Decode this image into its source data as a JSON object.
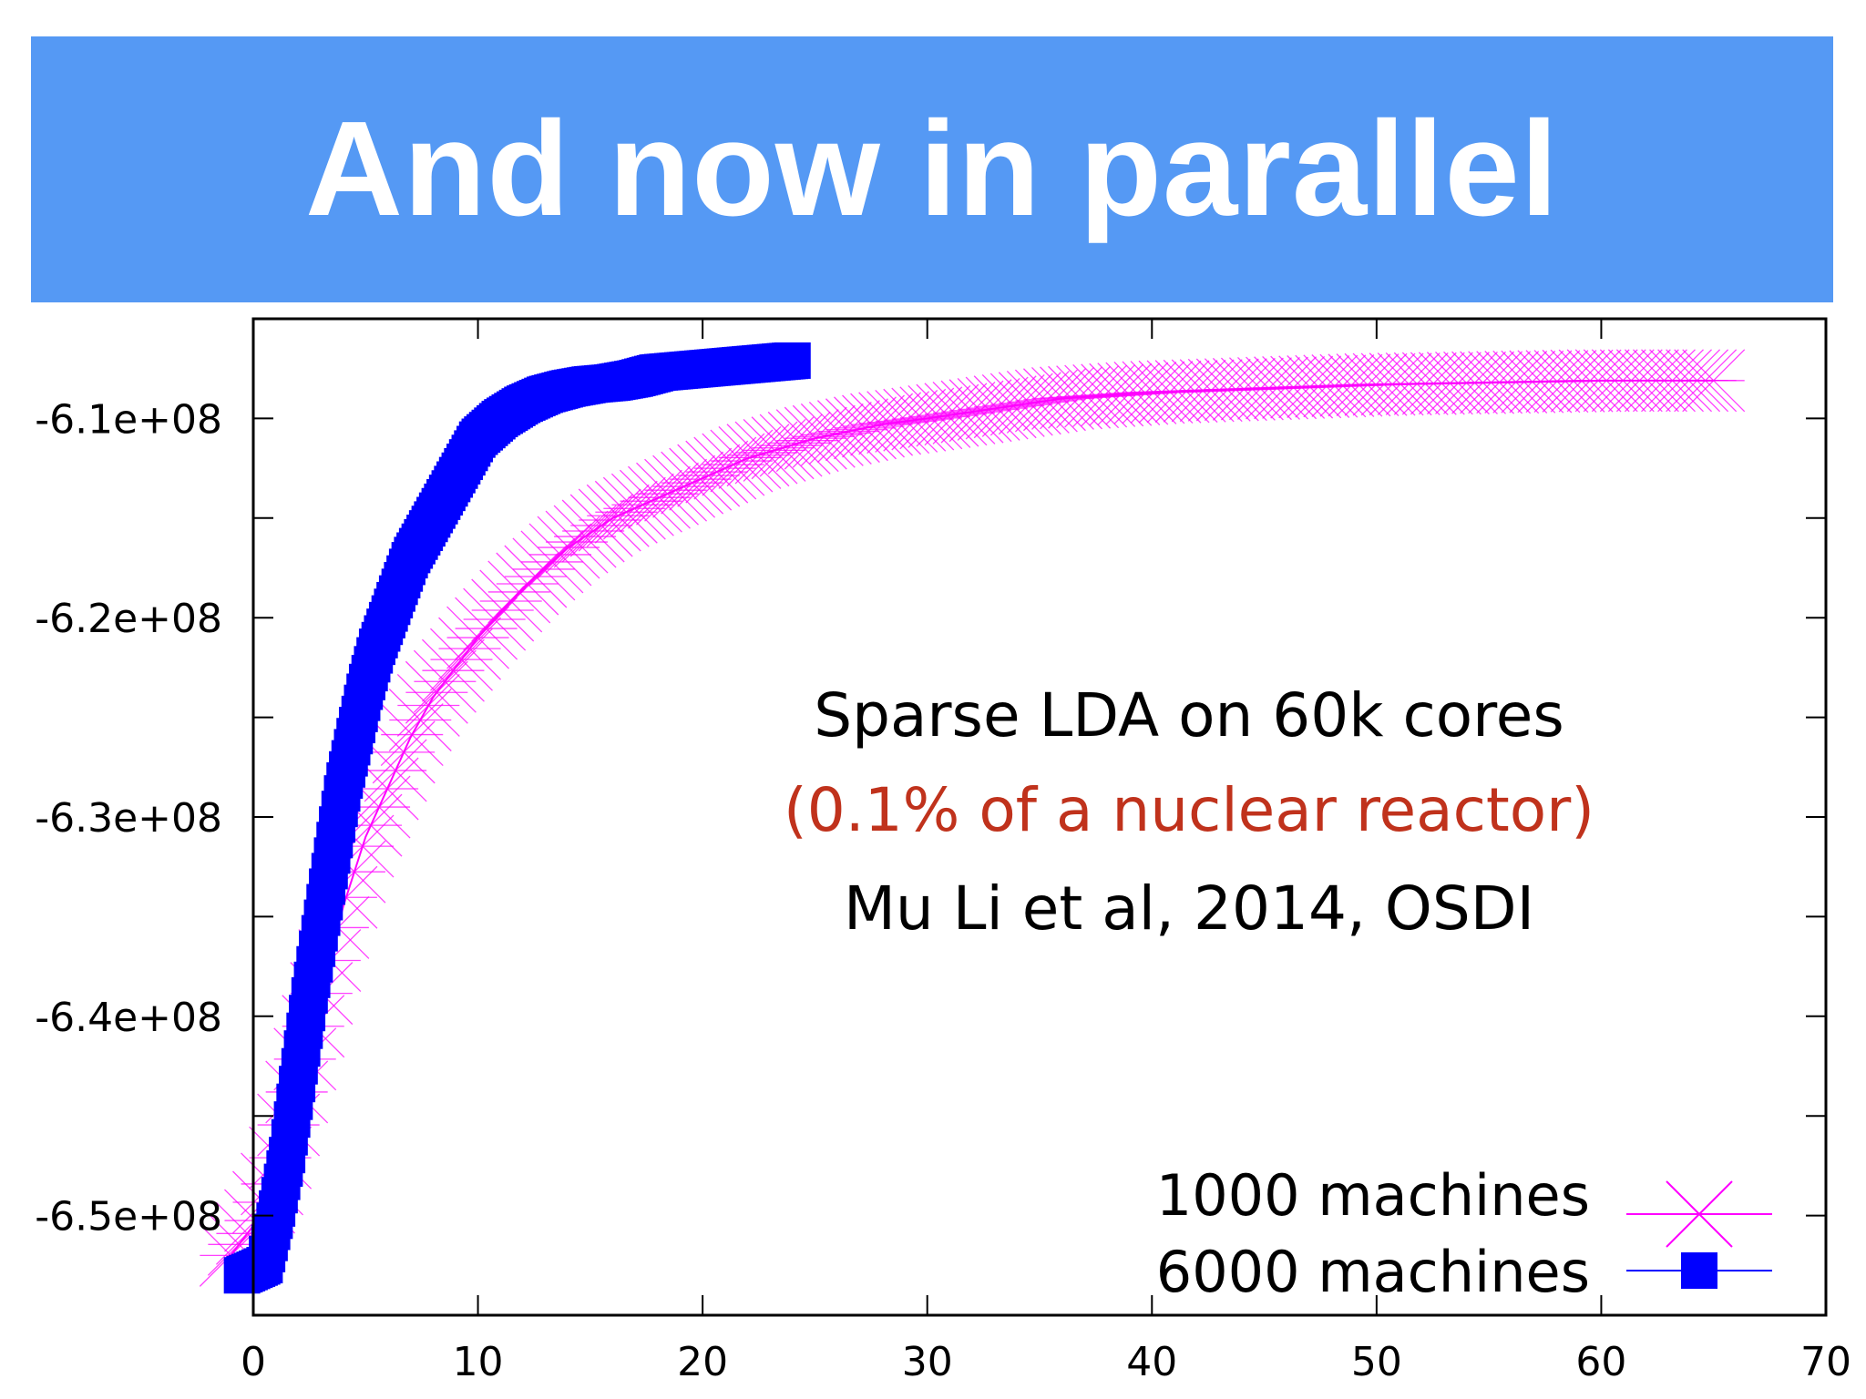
{
  "slide": {
    "title": "And now in parallel",
    "title_bar_color": "#5599f4"
  },
  "annotation": {
    "line1": "Sparse LDA on 60k cores",
    "line2": "(0.1% of a nuclear reactor)",
    "line3": "Mu Li et al, 2014, OSDI",
    "line1_color": "#000000",
    "line2_color": "#c0321c",
    "line3_color": "#000000"
  },
  "chart_data": {
    "type": "scatter",
    "title": "",
    "xlabel": "",
    "ylabel": "",
    "xlim": [
      0,
      70
    ],
    "ylim": [
      -655000000.0,
      -605000000.0
    ],
    "x_ticks": [
      0,
      10,
      20,
      30,
      40,
      50,
      60,
      70
    ],
    "y_ticks": [
      -650000000.0,
      -640000000.0,
      -630000000.0,
      -620000000.0,
      -610000000.0
    ],
    "x_tick_labels": [
      "0",
      "10",
      "20",
      "30",
      "40",
      "50",
      "60",
      "70"
    ],
    "y_tick_labels": [
      "-6.5e+08",
      "-6.4e+08",
      "-6.3e+08",
      "-6.2e+08",
      "-6.1e+08"
    ],
    "grid": false,
    "legend_position": "bottom-right",
    "series": [
      {
        "name": "1000 machines",
        "color": "#ff00ff",
        "marker": "cross",
        "x": [
          -1,
          0,
          1,
          2,
          3,
          4,
          5,
          6,
          7,
          8,
          9,
          10,
          12,
          14,
          16,
          18,
          20,
          22,
          25,
          28,
          30,
          33,
          36,
          40,
          45,
          50,
          55,
          60,
          63,
          65
        ],
        "y": [
          -652000000.0,
          -650500000.0,
          -648000000.0,
          -643500000.0,
          -639000000.0,
          -634500000.0,
          -631000000.0,
          -628500000.0,
          -626000000.0,
          -624000000.0,
          -622500000.0,
          -621000000.0,
          -618500000.0,
          -616500000.0,
          -615000000.0,
          -614000000.0,
          -613000000.0,
          -612000000.0,
          -611000000.0,
          -610300000.0,
          -610000000.0,
          -609500000.0,
          -609000000.0,
          -608700000.0,
          -608500000.0,
          -608300000.0,
          -608200000.0,
          -608100000.0,
          -608100000.0,
          -608100000.0
        ]
      },
      {
        "name": "6000 machines",
        "color": "#0000ff",
        "marker": "square",
        "x": [
          -0.5,
          0.5,
          1,
          1.5,
          2,
          2.5,
          3,
          3.5,
          4,
          4.5,
          5,
          5.5,
          6,
          6.5,
          7,
          7.5,
          8,
          8.5,
          9,
          9.5,
          10,
          11,
          12,
          13,
          14,
          15,
          16,
          17,
          18,
          19,
          20,
          21,
          22,
          23,
          24
        ],
        "y": [
          -653000000.0,
          -652500000.0,
          -650000000.0,
          -647000000.0,
          -643000000.0,
          -639000000.0,
          -635500000.0,
          -632000000.0,
          -628500000.0,
          -626000000.0,
          -623500000.0,
          -621500000.0,
          -620000000.0,
          -618500000.0,
          -617000000.0,
          -616000000.0,
          -615000000.0,
          -614000000.0,
          -613000000.0,
          -612000000.0,
          -611000000.0,
          -610000000.0,
          -609300000.0,
          -608800000.0,
          -608500000.0,
          -608300000.0,
          -608200000.0,
          -608000000.0,
          -607700000.0,
          -607600000.0,
          -607500000.0,
          -607400000.0,
          -607300000.0,
          -607200000.0,
          -607100000.0
        ]
      }
    ]
  }
}
